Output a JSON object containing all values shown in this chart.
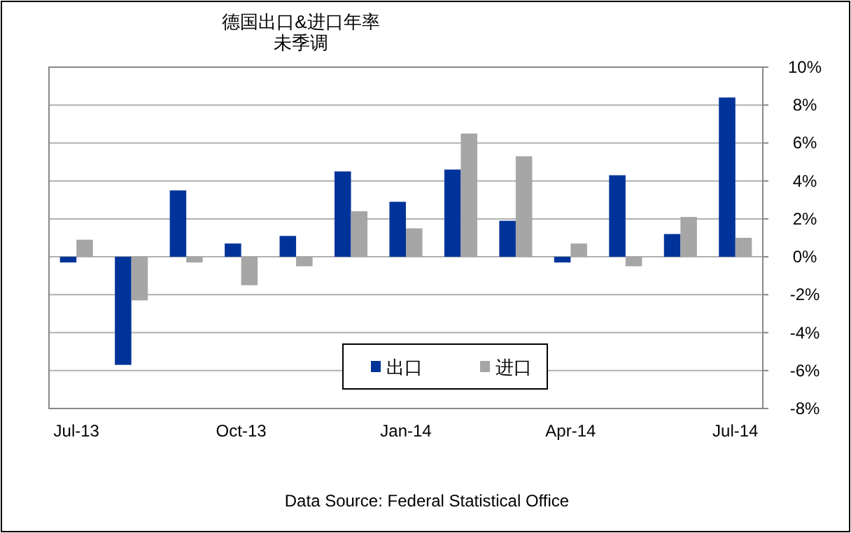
{
  "chart_data": {
    "type": "bar",
    "title": "德国出口&进口年率",
    "subtitle": "未季调",
    "categories": [
      "Jul-13",
      null,
      null,
      "Oct-13",
      null,
      null,
      "Jan-14",
      null,
      null,
      "Apr-14",
      null,
      null,
      "Jul-14"
    ],
    "series": [
      {
        "name": "出口",
        "color": "#003399",
        "values": [
          -0.3,
          -5.7,
          3.5,
          0.7,
          1.1,
          4.5,
          2.9,
          4.6,
          1.9,
          -0.3,
          4.3,
          1.2,
          8.4
        ]
      },
      {
        "name": "进口",
        "color": "#a6a6a6",
        "values": [
          0.9,
          -2.3,
          -0.3,
          -1.5,
          -0.5,
          2.4,
          1.5,
          6.5,
          5.3,
          0.7,
          -0.5,
          2.1,
          1.0
        ]
      }
    ],
    "ylim": [
      -8,
      10
    ],
    "yticks": [
      {
        "value": -8,
        "label": "-8%"
      },
      {
        "value": -6,
        "label": "-6%"
      },
      {
        "value": -4,
        "label": "-4%"
      },
      {
        "value": -2,
        "label": "-2%"
      },
      {
        "value": 0,
        "label": "0%"
      },
      {
        "value": 2,
        "label": "2%"
      },
      {
        "value": 4,
        "label": "4%"
      },
      {
        "value": 6,
        "label": "6%"
      },
      {
        "value": 8,
        "label": "8%"
      },
      {
        "value": 10,
        "label": "10%"
      }
    ],
    "grid": "y",
    "legend": "bottom",
    "annotations": [
      "Data Source: Federal Statistical Office"
    ]
  }
}
